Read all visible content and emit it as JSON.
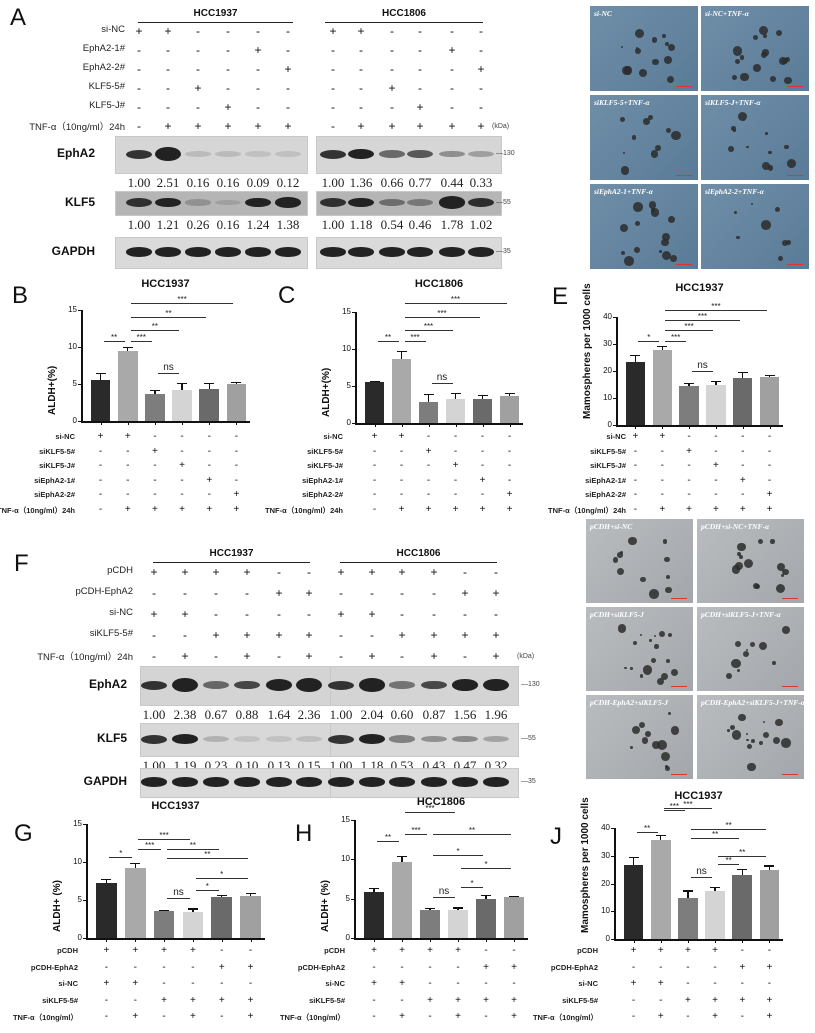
{
  "figure": {
    "panels": {
      "A": {
        "letter": "A",
        "cell_lines": [
          "HCC1937",
          "HCC1806"
        ],
        "row_labels": [
          "si-NC",
          "EphA2-1#",
          "EphA2-2#",
          "KLF5-5#",
          "KLF5-J#",
          "TNF-α（10ng/ml）24h"
        ],
        "conditions": [
          [
            "+",
            "+",
            "-",
            "-",
            "-",
            "-"
          ],
          [
            "-",
            "-",
            "-",
            "-",
            "+",
            "-"
          ],
          [
            "-",
            "-",
            "-",
            "-",
            "-",
            "+"
          ],
          [
            "-",
            "-",
            "+",
            "-",
            "-",
            "-"
          ],
          [
            "-",
            "-",
            "-",
            "+",
            "-",
            "-"
          ],
          [
            "-",
            "+",
            "+",
            "+",
            "+",
            "+"
          ]
        ],
        "kda_label": "(kDa)",
        "blots": [
          {
            "protein": "EphA2",
            "kda": "—130",
            "quant_hcc1937": [
              "1.00",
              "2.51",
              "0.16",
              "0.16",
              "0.09",
              "0.12"
            ],
            "quant_hcc1806": [
              "1.00",
              "1.36",
              "0.66",
              "0.77",
              "0.44",
              "0.33"
            ]
          },
          {
            "protein": "KLF5",
            "kda": "—55",
            "quant_hcc1937": [
              "1.00",
              "1.21",
              "0.26",
              "0.16",
              "1.24",
              "1.38"
            ],
            "quant_hcc1806": [
              "1.00",
              "1.18",
              "0.54",
              "0.46",
              "1.78",
              "1.02"
            ]
          },
          {
            "protein": "GAPDH",
            "kda": "—35"
          }
        ]
      },
      "D": {
        "letter": "D",
        "images": [
          "si-NC",
          "si-NC+TNF-α",
          "siKLF5-5+TNF-α",
          "siKLF5-J+TNF-α",
          "siEphA2-1+TNF-α",
          "siEphA2-2+TNF-α"
        ]
      },
      "F": {
        "letter": "F",
        "cell_lines": [
          "HCC1937",
          "HCC1806"
        ],
        "row_labels": [
          "pCDH",
          "pCDH-EphA2",
          "si-NC",
          "siKLF5-5#",
          "TNF-α（10ng/ml）24h"
        ],
        "conditions": [
          [
            "+",
            "+",
            "+",
            "+",
            "-",
            "-"
          ],
          [
            "-",
            "-",
            "-",
            "-",
            "+",
            "+"
          ],
          [
            "+",
            "+",
            "-",
            "-",
            "-",
            "-"
          ],
          [
            "-",
            "-",
            "+",
            "+",
            "+",
            "+"
          ],
          [
            "-",
            "+",
            "-",
            "+",
            "-",
            "+"
          ]
        ],
        "kda_label": "(kDa)",
        "blots": [
          {
            "protein": "EphA2",
            "kda": "—130",
            "quant_hcc1937": [
              "1.00",
              "2.38",
              "0.67",
              "0.88",
              "1.64",
              "2.36"
            ],
            "quant_hcc1806": [
              "1.00",
              "2.04",
              "0.60",
              "0.87",
              "1.56",
              "1.96"
            ]
          },
          {
            "protein": "KLF5",
            "kda": "—55",
            "quant_hcc1937": [
              "1.00",
              "1.19",
              "0.23",
              "0.10",
              "0.13",
              "0.15"
            ],
            "quant_hcc1806": [
              "1.00",
              "1.18",
              "0.53",
              "0.43",
              "0.47",
              "0.32"
            ]
          },
          {
            "protein": "GAPDH",
            "kda": "—35"
          }
        ]
      },
      "I": {
        "letter": "I",
        "images": [
          "pCDH+si-NC",
          "pCDH+si-NC+TNF-α",
          "pCDH+siKLF5-J",
          "pCDH+siKLF5-J+TNF-α",
          "pCDH-EphA2+siKLF5-J",
          "pCDH-EphA2+siKLF5-J+TNF-α"
        ]
      }
    }
  },
  "chart_data": [
    {
      "panel": "B",
      "type": "bar",
      "title": "HCC1937",
      "xlabel": "",
      "ylabel": "ALDH+(%)",
      "ylim": [
        0,
        15
      ],
      "yticks": [
        0,
        5,
        10,
        15
      ],
      "categories": [
        "1",
        "2",
        "3",
        "4",
        "5",
        "6"
      ],
      "values": [
        5.6,
        9.5,
        3.7,
        4.2,
        4.3,
        5.0
      ],
      "errors": [
        0.9,
        0.5,
        0.5,
        0.9,
        0.9,
        0.3
      ],
      "colors": [
        "#2a2a2a",
        "#a9a9a9",
        "#7d7d7d",
        "#d4d4d4",
        "#6a6a6a",
        "#a0a0a0"
      ],
      "condition_labels": [
        "si-NC",
        "siKLF5-5#",
        "siKLF5-J#",
        "siEphA2-1#",
        "siEphA2-2#",
        "TNF-α（10ng/ml）24h"
      ],
      "conditions": [
        [
          "+",
          "+",
          "-",
          "-",
          "-",
          "-"
        ],
        [
          "-",
          "-",
          "+",
          "-",
          "-",
          "-"
        ],
        [
          "-",
          "-",
          "-",
          "+",
          "-",
          "-"
        ],
        [
          "-",
          "-",
          "-",
          "-",
          "+",
          "-"
        ],
        [
          "-",
          "-",
          "-",
          "-",
          "-",
          "+"
        ],
        [
          "-",
          "+",
          "+",
          "+",
          "+",
          "+"
        ]
      ],
      "significance": [
        {
          "from": 0,
          "to": 1,
          "label": "**"
        },
        {
          "from": 1,
          "to": 2,
          "label": "***"
        },
        {
          "from": 1,
          "to": 3,
          "label": "**"
        },
        {
          "from": 1,
          "to": 4,
          "label": "**"
        },
        {
          "from": 1,
          "to": 5,
          "label": "***"
        },
        {
          "from": 2,
          "to": 3,
          "label": "ns"
        }
      ]
    },
    {
      "panel": "C",
      "type": "bar",
      "title": "HCC1806",
      "xlabel": "",
      "ylabel": "ALDH+(%)",
      "ylim": [
        0,
        15
      ],
      "yticks": [
        0,
        5,
        10,
        15
      ],
      "categories": [
        "1",
        "2",
        "3",
        "4",
        "5",
        "6"
      ],
      "values": [
        5.6,
        8.7,
        2.9,
        3.3,
        3.3,
        3.6
      ],
      "errors": [
        0.1,
        1.0,
        1.0,
        0.8,
        0.5,
        0.5
      ],
      "colors": [
        "#2a2a2a",
        "#a9a9a9",
        "#7d7d7d",
        "#d4d4d4",
        "#6a6a6a",
        "#a0a0a0"
      ],
      "condition_labels": [
        "si-NC",
        "siKLF5-5#",
        "siKLF5-J#",
        "siEphA2-1#",
        "siEphA2-2#",
        "TNF-α（10ng/ml）24h"
      ],
      "conditions": [
        [
          "+",
          "+",
          "-",
          "-",
          "-",
          "-"
        ],
        [
          "-",
          "-",
          "+",
          "-",
          "-",
          "-"
        ],
        [
          "-",
          "-",
          "-",
          "+",
          "-",
          "-"
        ],
        [
          "-",
          "-",
          "-",
          "-",
          "+",
          "-"
        ],
        [
          "-",
          "-",
          "-",
          "-",
          "-",
          "+"
        ],
        [
          "-",
          "+",
          "+",
          "+",
          "+",
          "+"
        ]
      ],
      "significance": [
        {
          "from": 0,
          "to": 1,
          "label": "**"
        },
        {
          "from": 1,
          "to": 2,
          "label": "***"
        },
        {
          "from": 1,
          "to": 3,
          "label": "***"
        },
        {
          "from": 1,
          "to": 4,
          "label": "***"
        },
        {
          "from": 1,
          "to": 5,
          "label": "***"
        },
        {
          "from": 2,
          "to": 3,
          "label": "ns"
        }
      ]
    },
    {
      "panel": "E",
      "type": "bar",
      "title": "HCC1937",
      "xlabel": "",
      "ylabel": "Mamospheres per 1000 cells",
      "ylim": [
        0,
        40
      ],
      "yticks": [
        0,
        10,
        20,
        30,
        40
      ],
      "categories": [
        "1",
        "2",
        "3",
        "4",
        "5",
        "6"
      ],
      "values": [
        23.5,
        27.8,
        14.5,
        14.7,
        17.3,
        17.7
      ],
      "errors": [
        2.5,
        1.5,
        1.0,
        1.7,
        2.5,
        1.0
      ],
      "colors": [
        "#2a2a2a",
        "#a9a9a9",
        "#7d7d7d",
        "#d4d4d4",
        "#6a6a6a",
        "#a0a0a0"
      ],
      "condition_labels": [
        "si-NC",
        "siKLF5-5#",
        "siKLF5-J#",
        "siEphA2-1#",
        "siEphA2-2#",
        "TNF-α（10ng/ml）24h"
      ],
      "conditions": [
        [
          "+",
          "+",
          "-",
          "-",
          "-",
          "-"
        ],
        [
          "-",
          "-",
          "+",
          "-",
          "-",
          "-"
        ],
        [
          "-",
          "-",
          "-",
          "+",
          "-",
          "-"
        ],
        [
          "-",
          "-",
          "-",
          "-",
          "+",
          "-"
        ],
        [
          "-",
          "-",
          "-",
          "-",
          "-",
          "+"
        ],
        [
          "-",
          "+",
          "+",
          "+",
          "+",
          "+"
        ]
      ],
      "significance": [
        {
          "from": 0,
          "to": 1,
          "label": "*"
        },
        {
          "from": 1,
          "to": 2,
          "label": "***"
        },
        {
          "from": 1,
          "to": 3,
          "label": "***"
        },
        {
          "from": 1,
          "to": 4,
          "label": "***"
        },
        {
          "from": 1,
          "to": 5,
          "label": "***"
        },
        {
          "from": 2,
          "to": 3,
          "label": "ns"
        }
      ]
    },
    {
      "panel": "G",
      "type": "bar",
      "title": "HCC1937",
      "xlabel": "",
      "ylabel": "ALDH+ (%)",
      "ylim": [
        0,
        15
      ],
      "yticks": [
        0,
        5,
        10,
        15
      ],
      "categories": [
        "1",
        "2",
        "3",
        "4",
        "5",
        "6"
      ],
      "values": [
        7.2,
        9.2,
        3.6,
        3.4,
        5.4,
        5.5
      ],
      "errors": [
        0.6,
        0.7,
        0.05,
        0.5,
        0.3,
        0.4
      ],
      "colors": [
        "#2a2a2a",
        "#a9a9a9",
        "#7d7d7d",
        "#d4d4d4",
        "#6a6a6a",
        "#a0a0a0"
      ],
      "condition_labels": [
        "pCDH",
        "pCDH-EphA2",
        "si-NC",
        "siKLF5-5#",
        "TNF-α（10ng/ml）"
      ],
      "conditions": [
        [
          "+",
          "+",
          "+",
          "+",
          "-",
          "-"
        ],
        [
          "-",
          "-",
          "-",
          "-",
          "+",
          "+"
        ],
        [
          "+",
          "+",
          "-",
          "-",
          "-",
          "-"
        ],
        [
          "-",
          "-",
          "+",
          "+",
          "+",
          "+"
        ],
        [
          "-",
          "+",
          "-",
          "+",
          "-",
          "+"
        ]
      ],
      "significance": [
        {
          "from": 0,
          "to": 1,
          "label": "*"
        },
        {
          "from": 1,
          "to": 2,
          "label": "***"
        },
        {
          "from": 1,
          "to": 3,
          "label": "***"
        },
        {
          "from": 2,
          "to": 4,
          "label": "**"
        },
        {
          "from": 2,
          "to": 5,
          "label": "**"
        },
        {
          "from": 2,
          "to": 3,
          "label": "ns"
        },
        {
          "from": 3,
          "to": 4,
          "label": "*"
        },
        {
          "from": 3,
          "to": 5,
          "label": "*"
        }
      ]
    },
    {
      "panel": "H",
      "type": "bar",
      "title": "HCC1806",
      "xlabel": "",
      "ylabel": "ALDH+ (%)",
      "ylim": [
        0,
        15
      ],
      "yticks": [
        0,
        5,
        10,
        15
      ],
      "categories": [
        "1",
        "2",
        "3",
        "4",
        "5",
        "6"
      ],
      "values": [
        5.8,
        9.7,
        3.5,
        3.5,
        5.0,
        5.2
      ],
      "errors": [
        0.6,
        0.7,
        0.3,
        0.4,
        0.5,
        0.1
      ],
      "colors": [
        "#2a2a2a",
        "#a9a9a9",
        "#7d7d7d",
        "#d4d4d4",
        "#6a6a6a",
        "#a0a0a0"
      ],
      "condition_labels": [
        "pCDH",
        "pCDH-EphA2",
        "si-NC",
        "siKLF5-5#",
        "TNF-α（10ng/ml）"
      ],
      "conditions": [
        [
          "+",
          "+",
          "+",
          "+",
          "-",
          "-"
        ],
        [
          "-",
          "-",
          "-",
          "-",
          "+",
          "+"
        ],
        [
          "+",
          "+",
          "-",
          "-",
          "-",
          "-"
        ],
        [
          "-",
          "-",
          "+",
          "+",
          "+",
          "+"
        ],
        [
          "-",
          "+",
          "-",
          "+",
          "-",
          "+"
        ]
      ],
      "significance": [
        {
          "from": 0,
          "to": 1,
          "label": "**"
        },
        {
          "from": 1,
          "to": 2,
          "label": "***"
        },
        {
          "from": 1,
          "to": 3,
          "label": "***"
        },
        {
          "from": 2,
          "to": 5,
          "label": "**"
        },
        {
          "from": 2,
          "to": 4,
          "label": "*"
        },
        {
          "from": 3,
          "to": 5,
          "label": "*"
        },
        {
          "from": 3,
          "to": 4,
          "label": "*"
        },
        {
          "from": 2,
          "to": 3,
          "label": "ns"
        }
      ]
    },
    {
      "panel": "J",
      "type": "bar",
      "title": "HCC1937",
      "xlabel": "",
      "ylabel": "Mamospheres per 1000 cells",
      "ylim": [
        0,
        40
      ],
      "yticks": [
        0,
        10,
        20,
        30,
        40
      ],
      "categories": [
        "1",
        "2",
        "3",
        "4",
        "5",
        "6"
      ],
      "values": [
        26.8,
        35.5,
        14.7,
        17.2,
        22.9,
        24.7
      ],
      "errors": [
        2.7,
        2.0,
        2.8,
        1.5,
        2.5,
        1.8
      ],
      "colors": [
        "#2a2a2a",
        "#a9a9a9",
        "#7d7d7d",
        "#d4d4d4",
        "#6a6a6a",
        "#a0a0a0"
      ],
      "condition_labels": [
        "pCDH",
        "pCDH-EphA2",
        "si-NC",
        "siKLF5-5#",
        "TNF-α（10ng/ml）"
      ],
      "conditions": [
        [
          "+",
          "+",
          "+",
          "+",
          "-",
          "-"
        ],
        [
          "-",
          "-",
          "-",
          "-",
          "+",
          "+"
        ],
        [
          "+",
          "+",
          "-",
          "-",
          "-",
          "-"
        ],
        [
          "-",
          "-",
          "+",
          "+",
          "+",
          "+"
        ],
        [
          "-",
          "+",
          "-",
          "+",
          "-",
          "+"
        ]
      ],
      "significance": [
        {
          "from": 0,
          "to": 1,
          "label": "**"
        },
        {
          "from": 1,
          "to": 2,
          "label": "***"
        },
        {
          "from": 1,
          "to": 3,
          "label": "***"
        },
        {
          "from": 2,
          "to": 5,
          "label": "**"
        },
        {
          "from": 2,
          "to": 4,
          "label": "**"
        },
        {
          "from": 3,
          "to": 5,
          "label": "**"
        },
        {
          "from": 3,
          "to": 4,
          "label": "**"
        },
        {
          "from": 2,
          "to": 3,
          "label": "ns"
        }
      ]
    }
  ]
}
